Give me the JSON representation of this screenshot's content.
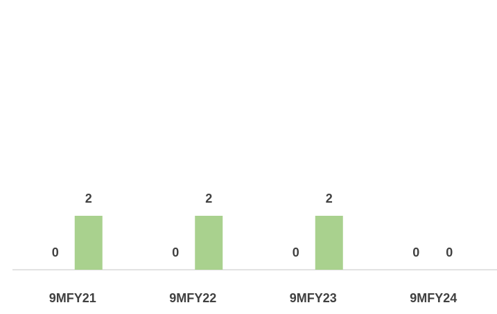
{
  "chart_data": {
    "type": "bar",
    "categories": [
      "9MFY21",
      "9MFY22",
      "9MFY23",
      "9MFY24"
    ],
    "series": [
      {
        "color": "#5b9bd5",
        "values": [
          0,
          0,
          0,
          0
        ]
      },
      {
        "color": "#a9d18e",
        "values": [
          2,
          2,
          2,
          0
        ]
      }
    ],
    "ylim": [
      0,
      10
    ]
  }
}
